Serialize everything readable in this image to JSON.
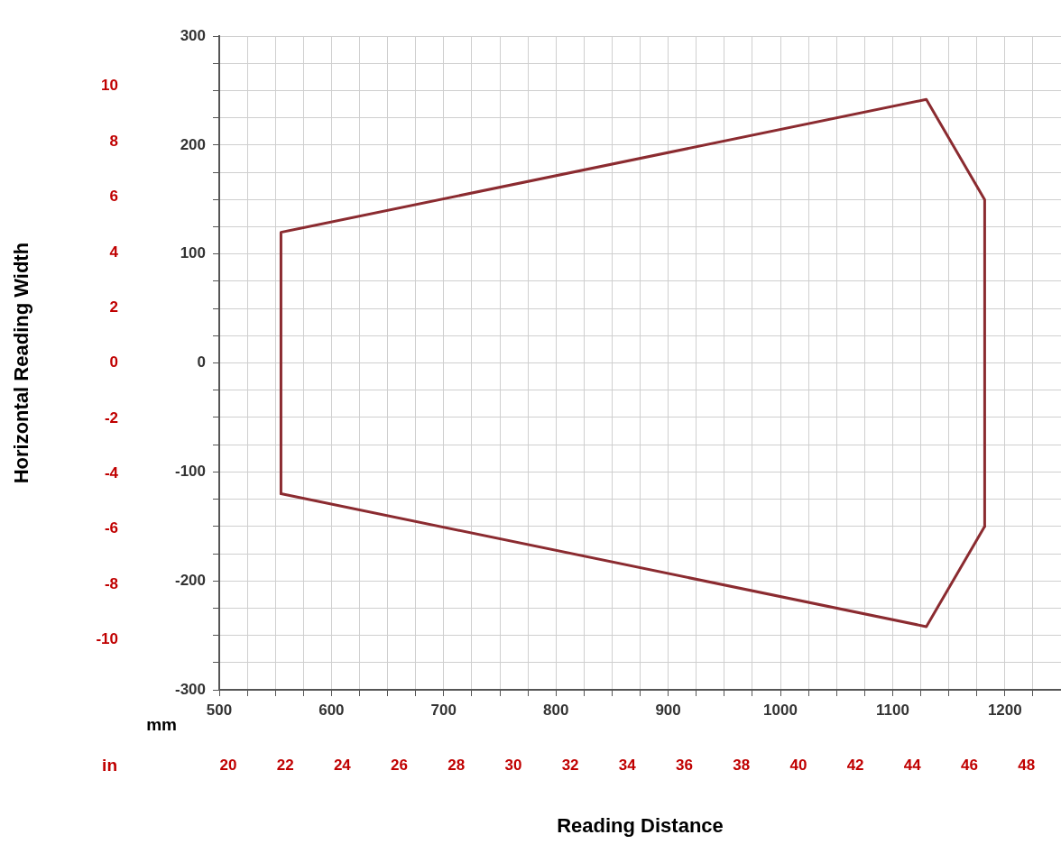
{
  "chart_data": {
    "type": "line",
    "xlabel": "Reading Distance",
    "y2label": "Horizontal Reading Width",
    "annotations": [
      "mm",
      "in"
    ],
    "series": [
      {
        "color": "#8b2b30",
        "x": [
          555,
          555,
          1130,
          1182,
          1182
        ],
        "values": [
          -120,
          120,
          242,
          150,
          -150
        ]
      },
      {
        "color": "#8b2b30",
        "x": [
          555,
          1130,
          1182
        ],
        "values": [
          -120,
          -242,
          -150
        ]
      }
    ],
    "xlim": [
      500,
      1250
    ],
    "xticks": [
      500,
      {
        "value": 525,
        "label": null
      },
      {
        "value": 550,
        "label": null
      },
      {
        "value": 575,
        "label": null
      },
      600,
      {
        "value": 625,
        "label": null
      },
      {
        "value": 650,
        "label": null
      },
      {
        "value": 675,
        "label": null
      },
      700,
      {
        "value": 725,
        "label": null
      },
      {
        "value": 750,
        "label": null
      },
      {
        "value": 775,
        "label": null
      },
      800,
      {
        "value": 825,
        "label": null
      },
      {
        "value": 850,
        "label": null
      },
      {
        "value": 875,
        "label": null
      },
      900,
      {
        "value": 925,
        "label": null
      },
      {
        "value": 950,
        "label": null
      },
      {
        "value": 975,
        "label": null
      },
      1000,
      {
        "value": 1025,
        "label": null
      },
      {
        "value": 1050,
        "label": null
      },
      {
        "value": 1075,
        "label": null
      },
      1100,
      {
        "value": 1125,
        "label": null
      },
      {
        "value": 1150,
        "label": null
      },
      {
        "value": 1175,
        "label": null
      },
      1200,
      {
        "value": 1225,
        "label": null
      }
    ],
    "ylim": [
      -300,
      300
    ],
    "yticks": [
      -300,
      {
        "value": -275,
        "label": null
      },
      {
        "value": -250,
        "label": null
      },
      {
        "value": -225,
        "label": null
      },
      -200,
      {
        "value": -175,
        "label": null
      },
      {
        "value": -150,
        "label": null
      },
      {
        "value": -125,
        "label": null
      },
      -100,
      {
        "value": -75,
        "label": null
      },
      {
        "value": -50,
        "label": null
      },
      {
        "value": -25,
        "label": null
      },
      0,
      {
        "value": 25,
        "label": null
      },
      {
        "value": 50,
        "label": null
      },
      {
        "value": 75,
        "label": null
      },
      100,
      {
        "value": 125,
        "label": null
      },
      {
        "value": 150,
        "label": null
      },
      {
        "value": 175,
        "label": null
      },
      200,
      {
        "value": 225,
        "label": null
      },
      {
        "value": 250,
        "label": null
      },
      {
        "value": 275,
        "label": null
      },
      300
    ],
    "x2lim": [
      19.685,
      49.213
    ],
    "x2ticks": [
      20,
      22,
      24,
      26,
      28,
      30,
      32,
      34,
      36,
      38,
      40,
      42,
      44,
      46,
      48
    ],
    "y2lim": [
      -11.811,
      11.811
    ],
    "y2ticks": [
      -10,
      -8,
      -6,
      -4,
      -2,
      0,
      2,
      4,
      6,
      8,
      10
    ],
    "grid": true,
    "legend": false,
    "marker": "none",
    "line_style": "solid"
  }
}
